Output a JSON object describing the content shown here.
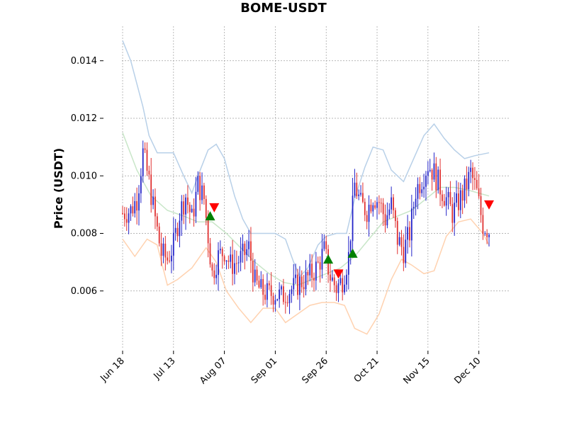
{
  "colors": {
    "up": "#2424c8",
    "down": "#e03030",
    "upper_band": "#b8d0e8",
    "middle_band": "#c8e6c8",
    "lower_band": "#ffd2b0",
    "buy_marker": "#008000",
    "sell_marker": "#ff0000",
    "grid": "#a0a0a0"
  },
  "chart_data": {
    "type": "candlestick",
    "title": "BOME-USDT",
    "ylabel": "Price (USDT)",
    "xlabel": "",
    "x_range": [
      "2024-06-18",
      "2024-12-15"
    ],
    "ylim": [
      0.004,
      0.0152
    ],
    "grid": true,
    "x_ticks": [
      "Jun 18",
      "Jul 13",
      "Aug 07",
      "Sep 01",
      "Sep 26",
      "Oct 21",
      "Nov 15",
      "Dec 10"
    ],
    "y_ticks": [
      "0.006",
      "0.008",
      "0.010",
      "0.012",
      "0.014"
    ],
    "y_tick_values": [
      0.006,
      0.008,
      0.01,
      0.012,
      0.014
    ],
    "price_path": [
      [
        "2024-06-18",
        0.0087
      ],
      [
        "2024-06-22",
        0.0088
      ],
      [
        "2024-06-25",
        0.0092
      ],
      [
        "2024-06-28",
        0.0108
      ],
      [
        "2024-07-01",
        0.0098
      ],
      [
        "2024-07-04",
        0.0085
      ],
      [
        "2024-07-07",
        0.0073
      ],
      [
        "2024-07-10",
        0.0071
      ],
      [
        "2024-07-13",
        0.0076
      ],
      [
        "2024-07-16",
        0.0087
      ],
      [
        "2024-07-19",
        0.0093
      ],
      [
        "2024-07-22",
        0.0085
      ],
      [
        "2024-07-25",
        0.0097
      ],
      [
        "2024-07-28",
        0.0092
      ],
      [
        "2024-08-01",
        0.0066
      ],
      [
        "2024-08-04",
        0.0072
      ],
      [
        "2024-08-07",
        0.0074
      ],
      [
        "2024-08-10",
        0.0069
      ],
      [
        "2024-08-13",
        0.007
      ],
      [
        "2024-08-16",
        0.0072
      ],
      [
        "2024-08-19",
        0.0075
      ],
      [
        "2024-08-22",
        0.0063
      ],
      [
        "2024-08-25",
        0.006
      ],
      [
        "2024-08-28",
        0.0059
      ],
      [
        "2024-09-01",
        0.0059
      ],
      [
        "2024-09-04",
        0.0058
      ],
      [
        "2024-09-07",
        0.006
      ],
      [
        "2024-09-10",
        0.0061
      ],
      [
        "2024-09-13",
        0.0063
      ],
      [
        "2024-09-16",
        0.0064
      ],
      [
        "2024-09-19",
        0.0066
      ],
      [
        "2024-09-22",
        0.0069
      ],
      [
        "2024-09-25",
        0.0074
      ],
      [
        "2024-09-28",
        0.0065
      ],
      [
        "2024-10-01",
        0.0061
      ],
      [
        "2024-10-04",
        0.0064
      ],
      [
        "2024-10-07",
        0.0072
      ],
      [
        "2024-10-10",
        0.0097
      ],
      [
        "2024-10-13",
        0.009
      ],
      [
        "2024-10-16",
        0.0088
      ],
      [
        "2024-10-19",
        0.0093
      ],
      [
        "2024-10-22",
        0.0091
      ],
      [
        "2024-10-25",
        0.0085
      ],
      [
        "2024-10-28",
        0.009
      ],
      [
        "2024-10-31",
        0.0078
      ],
      [
        "2024-11-03",
        0.0074
      ],
      [
        "2024-11-06",
        0.008
      ],
      [
        "2024-11-09",
        0.0095
      ],
      [
        "2024-11-12",
        0.0099
      ],
      [
        "2024-11-15",
        0.0104
      ],
      [
        "2024-11-18",
        0.0101
      ],
      [
        "2024-11-21",
        0.0096
      ],
      [
        "2024-11-24",
        0.0092
      ],
      [
        "2024-11-27",
        0.0087
      ],
      [
        "2024-11-30",
        0.0091
      ],
      [
        "2024-12-03",
        0.0095
      ],
      [
        "2024-12-06",
        0.0101
      ],
      [
        "2024-12-09",
        0.0094
      ],
      [
        "2024-12-12",
        0.0083
      ],
      [
        "2024-12-15",
        0.0081
      ]
    ],
    "bollinger_bands": {
      "upper": [
        [
          "2024-06-18",
          0.0147
        ],
        [
          "2024-06-22",
          0.014
        ],
        [
          "2024-06-28",
          0.0124
        ],
        [
          "2024-07-01",
          0.0114
        ],
        [
          "2024-07-05",
          0.0108
        ],
        [
          "2024-07-10",
          0.0108
        ],
        [
          "2024-07-13",
          0.0108
        ],
        [
          "2024-07-18",
          0.01
        ],
        [
          "2024-07-22",
          0.0094
        ],
        [
          "2024-07-25",
          0.01
        ],
        [
          "2024-07-30",
          0.0109
        ],
        [
          "2024-08-03",
          0.0111
        ],
        [
          "2024-08-07",
          0.0106
        ],
        [
          "2024-08-12",
          0.0093
        ],
        [
          "2024-08-16",
          0.0085
        ],
        [
          "2024-08-20",
          0.008
        ],
        [
          "2024-08-26",
          0.008
        ],
        [
          "2024-09-01",
          0.008
        ],
        [
          "2024-09-06",
          0.0078
        ],
        [
          "2024-09-10",
          0.007
        ],
        [
          "2024-09-13",
          0.0065
        ],
        [
          "2024-09-17",
          0.0068
        ],
        [
          "2024-09-22",
          0.0076
        ],
        [
          "2024-09-26",
          0.0079
        ],
        [
          "2024-10-01",
          0.008
        ],
        [
          "2024-10-06",
          0.008
        ],
        [
          "2024-10-10",
          0.0092
        ],
        [
          "2024-10-15",
          0.0103
        ],
        [
          "2024-10-19",
          0.011
        ],
        [
          "2024-10-24",
          0.0109
        ],
        [
          "2024-10-28",
          0.0102
        ],
        [
          "2024-11-03",
          0.0098
        ],
        [
          "2024-11-08",
          0.0106
        ],
        [
          "2024-11-13",
          0.0114
        ],
        [
          "2024-11-18",
          0.0118
        ],
        [
          "2024-11-23",
          0.0113
        ],
        [
          "2024-11-28",
          0.0109
        ],
        [
          "2024-12-03",
          0.0106
        ],
        [
          "2024-12-08",
          0.0107
        ],
        [
          "2024-12-15",
          0.0108
        ]
      ],
      "middle": [
        [
          "2024-06-18",
          0.0115
        ],
        [
          "2024-06-25",
          0.0102
        ],
        [
          "2024-07-02",
          0.0093
        ],
        [
          "2024-07-10",
          0.0088
        ],
        [
          "2024-07-18",
          0.0086
        ],
        [
          "2024-07-25",
          0.0084
        ],
        [
          "2024-08-01",
          0.0084
        ],
        [
          "2024-08-08",
          0.008
        ],
        [
          "2024-08-15",
          0.0075
        ],
        [
          "2024-08-22",
          0.007
        ],
        [
          "2024-08-29",
          0.0066
        ],
        [
          "2024-09-05",
          0.0063
        ],
        [
          "2024-09-12",
          0.0062
        ],
        [
          "2024-09-19",
          0.0064
        ],
        [
          "2024-09-26",
          0.0066
        ],
        [
          "2024-10-03",
          0.0068
        ],
        [
          "2024-10-10",
          0.0072
        ],
        [
          "2024-10-17",
          0.0078
        ],
        [
          "2024-10-24",
          0.0084
        ],
        [
          "2024-10-31",
          0.0086
        ],
        [
          "2024-11-07",
          0.0088
        ],
        [
          "2024-11-14",
          0.0092
        ],
        [
          "2024-11-21",
          0.0096
        ],
        [
          "2024-11-28",
          0.0096
        ],
        [
          "2024-12-05",
          0.0095
        ],
        [
          "2024-12-15",
          0.0093
        ]
      ],
      "lower": [
        [
          "2024-06-18",
          0.0078
        ],
        [
          "2024-06-24",
          0.0072
        ],
        [
          "2024-06-30",
          0.0078
        ],
        [
          "2024-07-05",
          0.0076
        ],
        [
          "2024-07-10",
          0.0062
        ],
        [
          "2024-07-15",
          0.0064
        ],
        [
          "2024-07-22",
          0.0068
        ],
        [
          "2024-07-29",
          0.0075
        ],
        [
          "2024-08-03",
          0.007
        ],
        [
          "2024-08-08",
          0.006
        ],
        [
          "2024-08-14",
          0.0054
        ],
        [
          "2024-08-20",
          0.0049
        ],
        [
          "2024-08-26",
          0.0054
        ],
        [
          "2024-09-01",
          0.0054
        ],
        [
          "2024-09-06",
          0.0049
        ],
        [
          "2024-09-12",
          0.0052
        ],
        [
          "2024-09-18",
          0.0055
        ],
        [
          "2024-09-24",
          0.0056
        ],
        [
          "2024-09-30",
          0.0056
        ],
        [
          "2024-10-05",
          0.0055
        ],
        [
          "2024-10-10",
          0.0047
        ],
        [
          "2024-10-16",
          0.0045
        ],
        [
          "2024-10-22",
          0.0052
        ],
        [
          "2024-10-28",
          0.0064
        ],
        [
          "2024-11-02",
          0.0071
        ],
        [
          "2024-11-07",
          0.0069
        ],
        [
          "2024-11-13",
          0.0066
        ],
        [
          "2024-11-18",
          0.0067
        ],
        [
          "2024-11-24",
          0.0079
        ],
        [
          "2024-11-30",
          0.0084
        ],
        [
          "2024-12-06",
          0.0085
        ],
        [
          "2024-12-12",
          0.008
        ],
        [
          "2024-12-15",
          0.0076
        ]
      ]
    },
    "markers": [
      {
        "date": "2024-07-31",
        "price": 0.0086,
        "type": "buy"
      },
      {
        "date": "2024-08-02",
        "price": 0.0089,
        "type": "sell"
      },
      {
        "date": "2024-09-27",
        "price": 0.0071,
        "type": "buy"
      },
      {
        "date": "2024-10-02",
        "price": 0.0066,
        "type": "sell"
      },
      {
        "date": "2024-10-09",
        "price": 0.0073,
        "type": "buy"
      },
      {
        "date": "2024-12-15",
        "price": 0.009,
        "type": "sell"
      }
    ]
  }
}
